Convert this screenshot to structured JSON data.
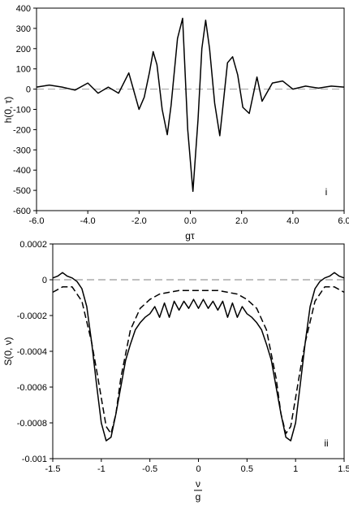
{
  "chart_data": [
    {
      "type": "line",
      "panel_label": "i",
      "xlabel": "gτ",
      "ylabel": "h(0, τ)",
      "xlim": [
        -6.0,
        6.0
      ],
      "ylim": [
        -600,
        400
      ],
      "x_ticks": [
        "-6.0",
        "-4.0",
        "-2.0",
        "0.0",
        "2.0",
        "4.0",
        "6.0"
      ],
      "y_ticks": [
        "400",
        "300",
        "200",
        "100",
        "0",
        "-100",
        "-200",
        "-300",
        "-400",
        "-500",
        "-600"
      ],
      "grid": false,
      "reference_line": {
        "y": 0,
        "style": "dashed",
        "color": "#a0a0a0"
      },
      "series": [
        {
          "style": "solid",
          "x": [
            -6.0,
            -5.5,
            -5.0,
            -4.5,
            -4.0,
            -3.6,
            -3.2,
            -2.8,
            -2.4,
            -2.0,
            -1.8,
            -1.6,
            -1.45,
            -1.3,
            -1.1,
            -0.9,
            -0.75,
            -0.5,
            -0.3,
            -0.1,
            0.1,
            0.3,
            0.45,
            0.6,
            0.75,
            0.95,
            1.15,
            1.3,
            1.45,
            1.65,
            1.85,
            2.05,
            2.3,
            2.6,
            2.8,
            3.2,
            3.6,
            4.0,
            4.5,
            5.0,
            5.5,
            6.0
          ],
          "y": [
            10,
            20,
            10,
            -5,
            30,
            -20,
            10,
            -20,
            80,
            -100,
            -40,
            80,
            185,
            120,
            -100,
            -225,
            -80,
            250,
            350,
            -200,
            -505,
            -150,
            200,
            340,
            200,
            -70,
            -230,
            -50,
            130,
            160,
            70,
            -90,
            -120,
            60,
            -60,
            30,
            40,
            0,
            15,
            5,
            15,
            10
          ]
        }
      ]
    },
    {
      "type": "line",
      "panel_label": "ii",
      "xlabel_num": "ν",
      "xlabel_den": "g",
      "ylabel": "S(0, ν)",
      "xlim": [
        -1.5,
        1.5
      ],
      "ylim": [
        -0.001,
        0.0002
      ],
      "x_ticks": [
        "-1.5",
        "-1",
        "-0.5",
        "0",
        "0.5",
        "1",
        "1.5"
      ],
      "y_ticks": [
        "0.0002",
        "0",
        "-0.0002",
        "-0.0004",
        "-0.0006",
        "-0.0008",
        "-0.001"
      ],
      "grid": false,
      "reference_line": {
        "y": 0,
        "style": "dashed",
        "color": "#808080"
      },
      "series": [
        {
          "style": "solid",
          "x": [
            -1.5,
            -1.45,
            -1.4,
            -1.35,
            -1.3,
            -1.25,
            -1.2,
            -1.15,
            -1.1,
            -1.05,
            -1.0,
            -0.95,
            -0.9,
            -0.85,
            -0.8,
            -0.75,
            -0.7,
            -0.65,
            -0.6,
            -0.55,
            -0.5,
            -0.45,
            -0.4,
            -0.35,
            -0.3,
            -0.25,
            -0.2,
            -0.15,
            -0.1,
            -0.05,
            0.0,
            0.05,
            0.1,
            0.15,
            0.2,
            0.25,
            0.3,
            0.35,
            0.4,
            0.45,
            0.5,
            0.55,
            0.6,
            0.65,
            0.7,
            0.75,
            0.8,
            0.85,
            0.9,
            0.95,
            1.0,
            1.05,
            1.1,
            1.15,
            1.2,
            1.25,
            1.3,
            1.35,
            1.4,
            1.45,
            1.5
          ],
          "y": [
            1e-05,
            2e-05,
            4e-05,
            2e-05,
            1e-05,
            -1e-05,
            -5e-05,
            -0.00015,
            -0.00035,
            -0.00058,
            -0.0008,
            -0.0009,
            -0.00088,
            -0.00075,
            -0.0006,
            -0.00045,
            -0.00036,
            -0.00028,
            -0.00024,
            -0.00021,
            -0.00019,
            -0.00015,
            -0.00021,
            -0.00013,
            -0.00021,
            -0.00012,
            -0.00017,
            -0.00012,
            -0.00016,
            -0.00011,
            -0.00016,
            -0.00011,
            -0.00016,
            -0.00012,
            -0.00017,
            -0.00012,
            -0.00021,
            -0.00013,
            -0.00021,
            -0.00015,
            -0.00019,
            -0.00021,
            -0.00024,
            -0.00028,
            -0.00036,
            -0.00045,
            -0.0006,
            -0.00075,
            -0.00088,
            -0.0009,
            -0.0008,
            -0.00058,
            -0.00035,
            -0.00015,
            -5e-05,
            -1e-05,
            1e-05,
            2e-05,
            4e-05,
            2e-05,
            1e-05
          ]
        },
        {
          "style": "dashed",
          "x": [
            -1.5,
            -1.4,
            -1.3,
            -1.2,
            -1.1,
            -1.05,
            -1.0,
            -0.95,
            -0.9,
            -0.85,
            -0.8,
            -0.7,
            -0.6,
            -0.5,
            -0.4,
            -0.3,
            -0.2,
            -0.1,
            0.0,
            0.1,
            0.2,
            0.3,
            0.4,
            0.5,
            0.6,
            0.7,
            0.8,
            0.85,
            0.9,
            0.95,
            1.0,
            1.05,
            1.1,
            1.2,
            1.3,
            1.4,
            1.5
          ],
          "y": [
            -7e-05,
            -4e-05,
            -4e-05,
            -0.00012,
            -0.00035,
            -0.0005,
            -0.00066,
            -0.00082,
            -0.00086,
            -0.00075,
            -0.00055,
            -0.00028,
            -0.00016,
            -0.00011,
            -8e-05,
            -7e-05,
            -6e-05,
            -6e-05,
            -6e-05,
            -6e-05,
            -6e-05,
            -7e-05,
            -8e-05,
            -0.00011,
            -0.00016,
            -0.00028,
            -0.00055,
            -0.00075,
            -0.00086,
            -0.00082,
            -0.00066,
            -0.0005,
            -0.00035,
            -0.00012,
            -4e-05,
            -4e-05,
            -7e-05
          ]
        }
      ]
    }
  ]
}
